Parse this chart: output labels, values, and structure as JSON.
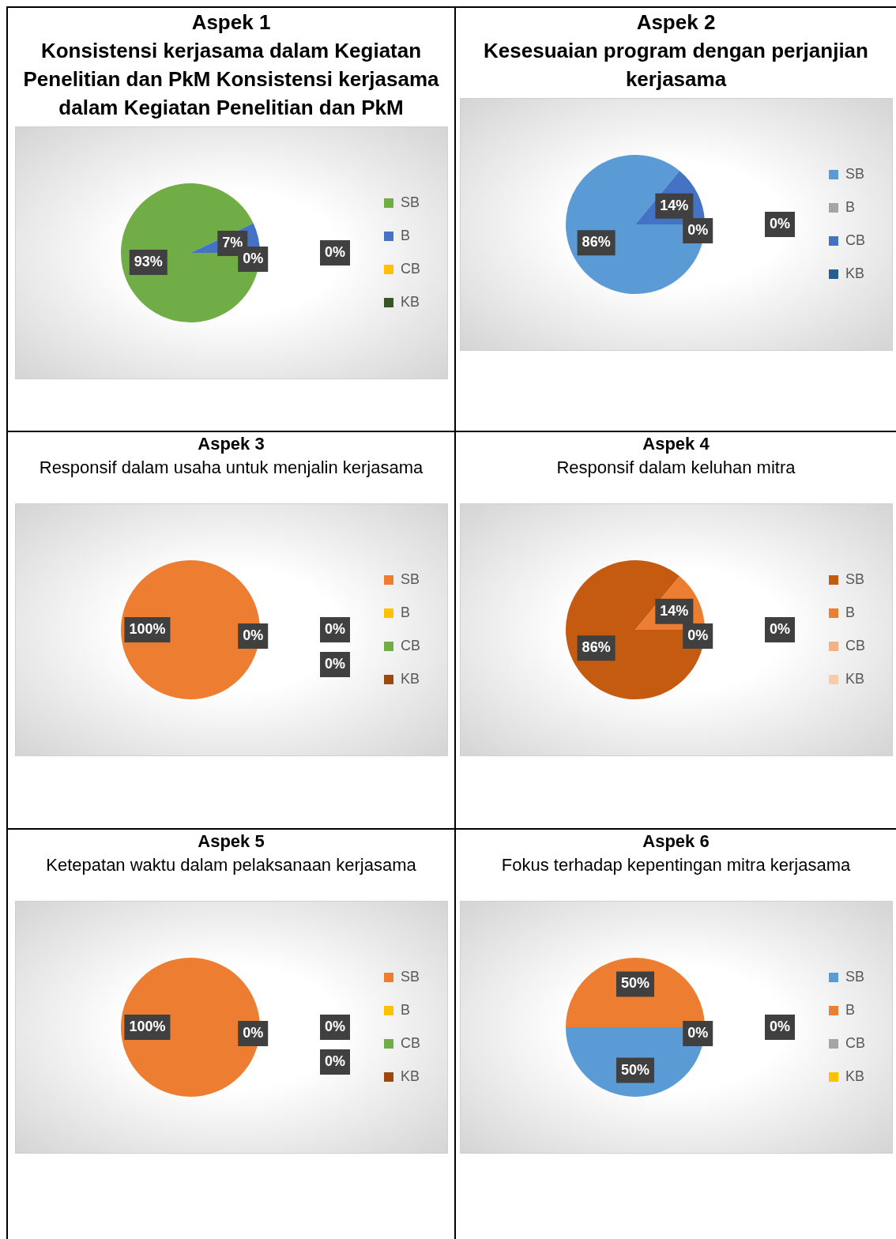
{
  "chart_data": [
    {
      "type": "pie",
      "title": "Aspek 1",
      "subtitle": "Konsistensi kerjasama dalam Kegiatan Penelitian dan PkM Konsistensi kerjasama dalam Kegiatan Penelitian dan PkM",
      "categories": [
        "SB",
        "B",
        "CB",
        "KB"
      ],
      "values": [
        93,
        7,
        0,
        0
      ],
      "colors": [
        "#70ad47",
        "#4472c4",
        "#ffc000",
        "#375623"
      ],
      "value_labels": [
        "93%",
        "7%",
        "0%",
        "0%"
      ],
      "legend": "right"
    },
    {
      "type": "pie",
      "title": "Aspek 2",
      "subtitle": "Kesesuaian program dengan perjanjian kerjasama",
      "categories": [
        "SB",
        "B",
        "CB",
        "KB"
      ],
      "values": [
        86,
        0,
        14,
        0
      ],
      "colors": [
        "#5b9bd5",
        "#a5a5a5",
        "#4472c4",
        "#255e91"
      ],
      "value_labels": [
        "86%",
        "0%",
        "14%",
        "0%"
      ],
      "legend": "right"
    },
    {
      "type": "pie",
      "title": "Aspek 3",
      "subtitle": "Responsif dalam usaha untuk menjalin kerjasama",
      "categories": [
        "SB",
        "B",
        "CB",
        "KB"
      ],
      "values": [
        100,
        0,
        0,
        0
      ],
      "colors": [
        "#ed7d31",
        "#ffc000",
        "#70ad47",
        "#9e480e"
      ],
      "value_labels": [
        "100%",
        "0%",
        "0%",
        "0%"
      ],
      "legend": "right"
    },
    {
      "type": "pie",
      "title": "Aspek 4",
      "subtitle": "Responsif dalam keluhan mitra",
      "categories": [
        "SB",
        "B",
        "CB",
        "KB"
      ],
      "values": [
        86,
        14,
        0,
        0
      ],
      "colors": [
        "#c55a11",
        "#ed7d31",
        "#f4b183",
        "#f8cbad"
      ],
      "value_labels": [
        "86%",
        "14%",
        "0%",
        "0%"
      ],
      "legend": "right"
    },
    {
      "type": "pie",
      "title": "Aspek 5",
      "subtitle": "Ketepatan waktu dalam pelaksanaan kerjasama",
      "categories": [
        "SB",
        "B",
        "CB",
        "KB"
      ],
      "values": [
        100,
        0,
        0,
        0
      ],
      "colors": [
        "#ed7d31",
        "#ffc000",
        "#70ad47",
        "#9e480e"
      ],
      "value_labels": [
        "100%",
        "0%",
        "0%",
        "0%"
      ],
      "legend": "right"
    },
    {
      "type": "pie",
      "title": "Aspek 6",
      "subtitle": "Fokus terhadap kepentingan mitra kerjasama",
      "categories": [
        "SB",
        "B",
        "CB",
        "KB"
      ],
      "values": [
        50,
        50,
        0,
        0
      ],
      "colors": [
        "#5b9bd5",
        "#ed7d31",
        "#a5a5a5",
        "#ffc000"
      ],
      "value_labels": [
        "50%",
        "50%",
        "0%",
        "0%"
      ],
      "legend": "right"
    }
  ]
}
